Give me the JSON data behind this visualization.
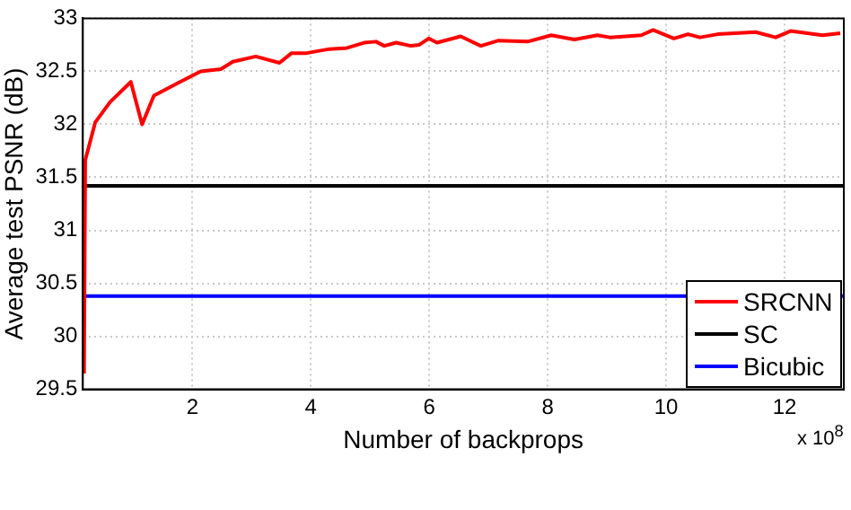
{
  "chart_data": {
    "type": "line",
    "xlabel": "Number of backprops",
    "ylabel": "Average test PSNR (dB)",
    "annotations": [
      "x 10$^{8}$"
    ],
    "xlim": [
      0.15,
      13
    ],
    "xticks": [
      2,
      4,
      6,
      8,
      10,
      12
    ],
    "ylim": [
      29.5,
      33
    ],
    "yticks": [
      29.5,
      30,
      30.5,
      31,
      31.5,
      32,
      32.5,
      33
    ],
    "grid": true,
    "legend": "bottom right",
    "marker": "none",
    "line_style": "solid",
    "series": [
      {
        "name": "SRCNN",
        "color": "#ff0000",
        "x": [
          0.17,
          0.19,
          0.36,
          0.61,
          0.96,
          1.15,
          1.35,
          1.79,
          2.14,
          2.48,
          2.68,
          3.07,
          3.47,
          3.67,
          3.91,
          4.31,
          4.61,
          4.9,
          5.1,
          5.24,
          5.44,
          5.69,
          5.83,
          5.99,
          6.13,
          6.53,
          6.87,
          7.17,
          7.66,
          8.06,
          8.45,
          8.84,
          9.05,
          9.58,
          9.78,
          10.13,
          10.37,
          10.57,
          10.87,
          11.51,
          11.85,
          12.1,
          12.64,
          12.94
        ],
        "values": [
          29.65,
          31.66,
          32.02,
          32.21,
          32.4,
          32.0,
          32.27,
          32.4,
          32.5,
          32.52,
          32.59,
          32.64,
          32.58,
          32.67,
          32.67,
          32.71,
          32.72,
          32.77,
          32.78,
          32.74,
          32.77,
          32.74,
          32.75,
          32.81,
          32.77,
          32.83,
          32.74,
          32.79,
          32.78,
          32.84,
          32.8,
          32.84,
          32.82,
          32.84,
          32.89,
          32.81,
          32.85,
          32.82,
          32.85,
          32.87,
          32.82,
          32.88,
          32.84,
          32.86
        ]
      },
      {
        "name": "SC",
        "color": "#000000",
        "x": [
          0.15,
          13
        ],
        "values": [
          31.42,
          31.42
        ]
      },
      {
        "name": "Bicubic",
        "color": "#0000ff",
        "x": [
          0.15,
          13
        ],
        "values": [
          30.38,
          30.38
        ]
      }
    ]
  }
}
